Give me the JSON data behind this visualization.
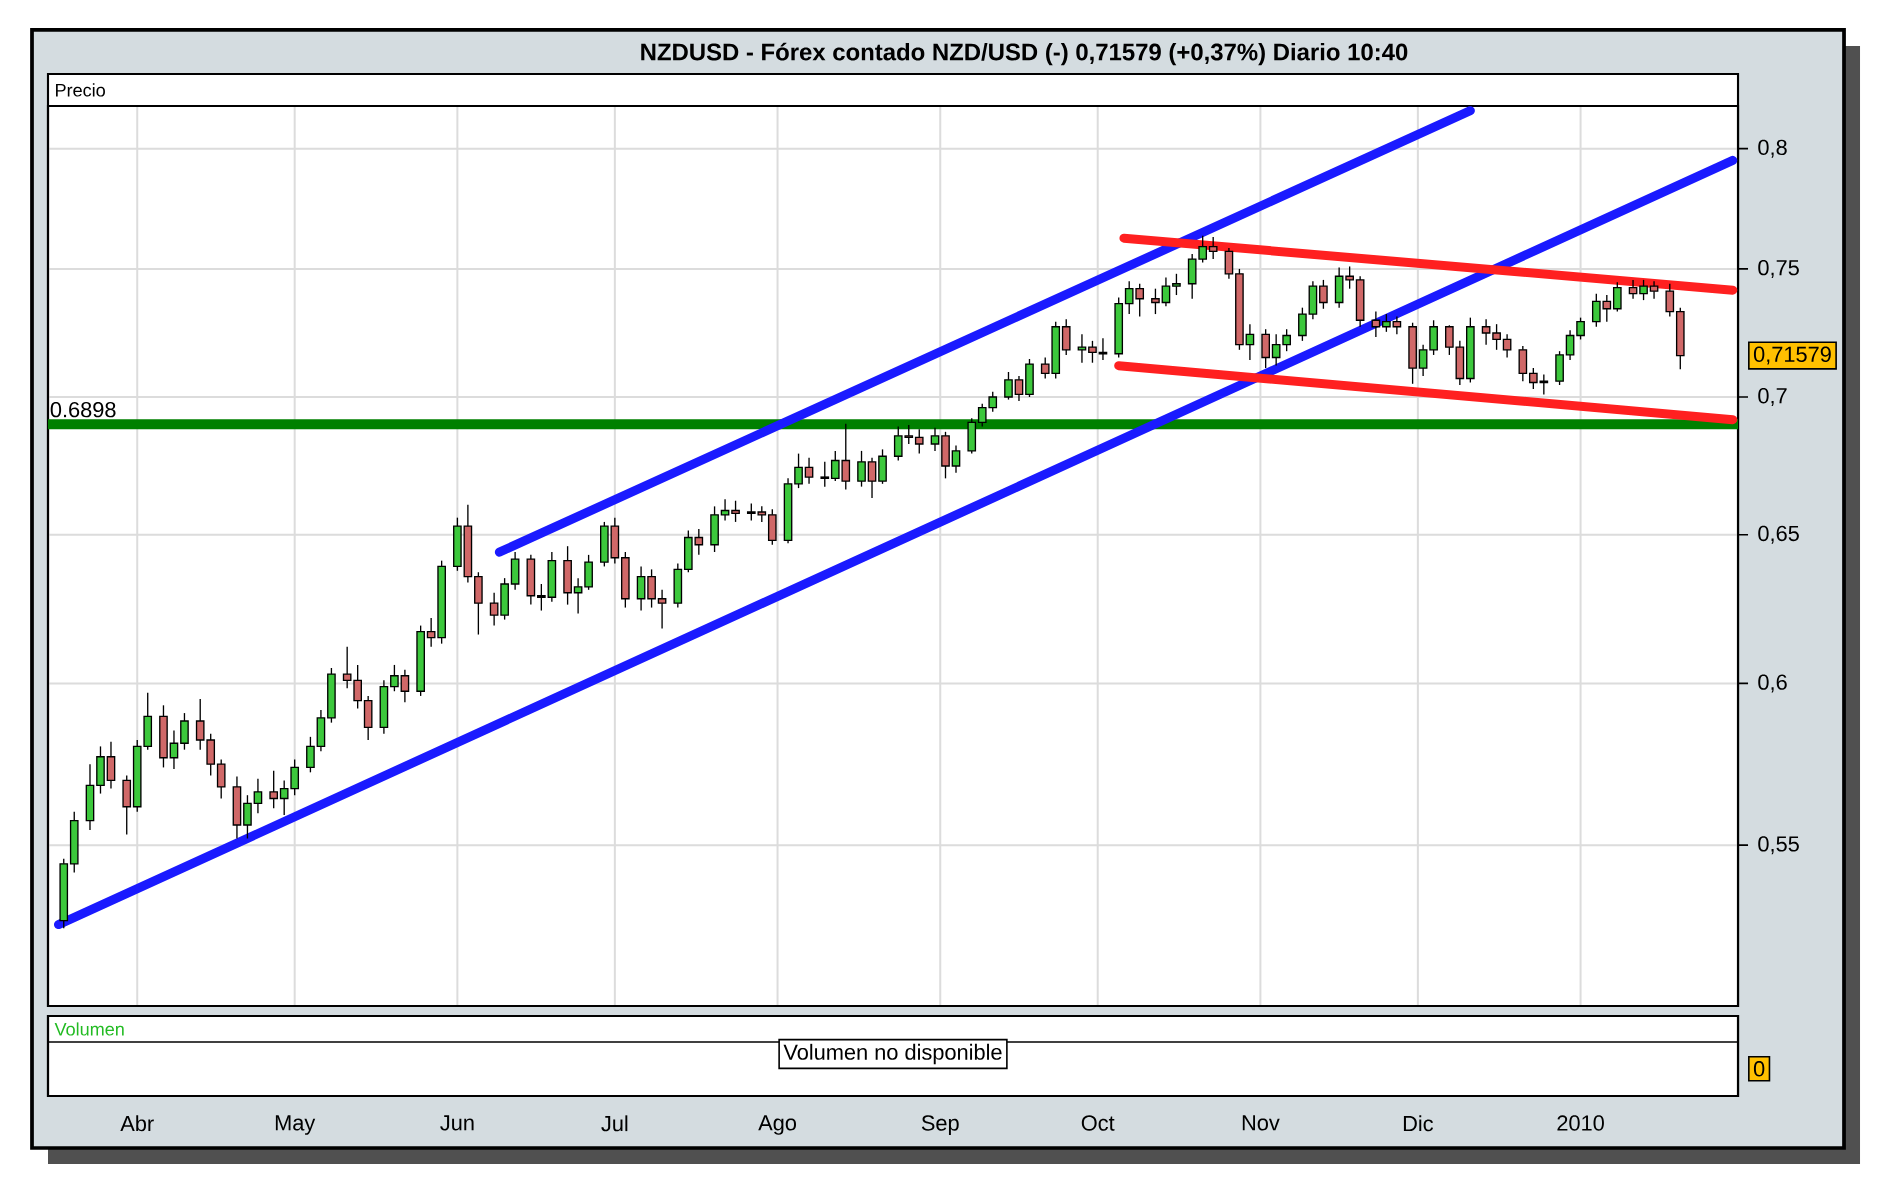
{
  "chart_data": [
    {
      "type": "candlestick",
      "title": "NZDUSD - Fórex contado NZD/USD (-) 0,71579 (+0,37%) Diario 10:40",
      "ylabel": "Precio",
      "x": [
        "2009-03-18",
        "2009-03-20",
        "2009-03-23",
        "2009-03-25",
        "2009-03-27",
        "2009-03-30",
        "2009-04-01",
        "2009-04-03",
        "2009-04-06",
        "2009-04-08",
        "2009-04-10",
        "2009-04-13",
        "2009-04-15",
        "2009-04-17",
        "2009-04-20",
        "2009-04-22",
        "2009-04-24",
        "2009-04-27",
        "2009-04-29",
        "2009-05-01",
        "2009-05-04",
        "2009-05-06",
        "2009-05-08",
        "2009-05-11",
        "2009-05-13",
        "2009-05-15",
        "2009-05-18",
        "2009-05-20",
        "2009-05-22",
        "2009-05-25",
        "2009-05-27",
        "2009-05-29",
        "2009-06-01",
        "2009-06-03",
        "2009-06-05",
        "2009-06-08",
        "2009-06-10",
        "2009-06-12",
        "2009-06-15",
        "2009-06-17",
        "2009-06-19",
        "2009-06-22",
        "2009-06-24",
        "2009-06-26",
        "2009-06-29",
        "2009-07-01",
        "2009-07-03",
        "2009-07-06",
        "2009-07-08",
        "2009-07-10",
        "2009-07-13",
        "2009-07-15",
        "2009-07-17",
        "2009-07-20",
        "2009-07-22",
        "2009-07-24",
        "2009-07-27",
        "2009-07-29",
        "2009-07-31",
        "2009-08-03",
        "2009-08-05",
        "2009-08-07",
        "2009-08-10",
        "2009-08-12",
        "2009-08-14",
        "2009-08-17",
        "2009-08-19",
        "2009-08-21",
        "2009-08-24",
        "2009-08-26",
        "2009-08-28",
        "2009-08-31",
        "2009-09-02",
        "2009-09-04",
        "2009-09-07",
        "2009-09-09",
        "2009-09-11",
        "2009-09-14",
        "2009-09-16",
        "2009-09-18",
        "2009-09-21",
        "2009-09-23",
        "2009-09-25",
        "2009-09-28",
        "2009-09-30",
        "2009-10-02",
        "2009-10-05",
        "2009-10-07",
        "2009-10-09",
        "2009-10-12",
        "2009-10-14",
        "2009-10-16",
        "2009-10-19",
        "2009-10-21",
        "2009-10-23",
        "2009-10-26",
        "2009-10-28",
        "2009-10-30",
        "2009-11-02",
        "2009-11-04",
        "2009-11-06",
        "2009-11-09",
        "2009-11-11",
        "2009-11-13",
        "2009-11-16",
        "2009-11-18",
        "2009-11-20",
        "2009-11-23",
        "2009-11-25",
        "2009-11-27",
        "2009-11-30",
        "2009-12-02",
        "2009-12-04",
        "2009-12-07",
        "2009-12-09",
        "2009-12-11",
        "2009-12-14",
        "2009-12-16",
        "2009-12-18",
        "2009-12-21",
        "2009-12-23",
        "2009-12-25",
        "2009-12-28",
        "2009-12-30",
        "2010-01-01",
        "2010-01-04",
        "2010-01-06",
        "2010-01-08",
        "2010-01-11",
        "2010-01-13",
        "2010-01-15",
        "2010-01-18",
        "2010-01-20"
      ],
      "ohlc": [
        [
          0.5281,
          0.546,
          0.526,
          0.5445
        ],
        [
          0.5445,
          0.56,
          0.542,
          0.5573
        ],
        [
          0.5573,
          0.5745,
          0.5545,
          0.568
        ],
        [
          0.568,
          0.58,
          0.5655,
          0.5768
        ],
        [
          0.5768,
          0.5815,
          0.567,
          0.5695
        ],
        [
          0.5695,
          0.571,
          0.5532,
          0.5615
        ],
        [
          0.5615,
          0.582,
          0.56,
          0.58
        ],
        [
          0.58,
          0.597,
          0.579,
          0.5895
        ],
        [
          0.5895,
          0.593,
          0.5735,
          0.5765
        ],
        [
          0.5765,
          0.585,
          0.573,
          0.581
        ],
        [
          0.581,
          0.5905,
          0.579,
          0.588
        ],
        [
          0.588,
          0.595,
          0.579,
          0.582
        ],
        [
          0.582,
          0.584,
          0.571,
          0.5745
        ],
        [
          0.5745,
          0.576,
          0.564,
          0.5675
        ],
        [
          0.5675,
          0.5707,
          0.552,
          0.556
        ],
        [
          0.556,
          0.565,
          0.552,
          0.5625
        ],
        [
          0.5625,
          0.57,
          0.5595,
          0.566
        ],
        [
          0.566,
          0.5725,
          0.561,
          0.564
        ],
        [
          0.564,
          0.5695,
          0.559,
          0.567
        ],
        [
          0.567,
          0.576,
          0.565,
          0.5735
        ],
        [
          0.5735,
          0.583,
          0.572,
          0.58
        ],
        [
          0.58,
          0.5915,
          0.5785,
          0.589
        ],
        [
          0.589,
          0.605,
          0.5875,
          0.603
        ],
        [
          0.603,
          0.612,
          0.5985,
          0.601
        ],
        [
          0.601,
          0.606,
          0.592,
          0.5945
        ],
        [
          0.5945,
          0.596,
          0.582,
          0.586
        ],
        [
          0.586,
          0.601,
          0.584,
          0.599
        ],
        [
          0.599,
          0.606,
          0.5975,
          0.6025
        ],
        [
          0.6025,
          0.6045,
          0.594,
          0.5975
        ],
        [
          0.5975,
          0.619,
          0.596,
          0.617
        ],
        [
          0.617,
          0.6215,
          0.612,
          0.615
        ],
        [
          0.615,
          0.641,
          0.613,
          0.639
        ],
        [
          0.639,
          0.656,
          0.6375,
          0.653
        ],
        [
          0.653,
          0.6605,
          0.6335,
          0.6355
        ],
        [
          0.6355,
          0.637,
          0.616,
          0.6265
        ],
        [
          0.6265,
          0.63,
          0.619,
          0.6225
        ],
        [
          0.6225,
          0.635,
          0.621,
          0.633
        ],
        [
          0.633,
          0.644,
          0.631,
          0.6415
        ],
        [
          0.6415,
          0.643,
          0.626,
          0.629
        ],
        [
          0.629,
          0.633,
          0.624,
          0.6285
        ],
        [
          0.6285,
          0.644,
          0.627,
          0.641
        ],
        [
          0.641,
          0.646,
          0.626,
          0.63
        ],
        [
          0.63,
          0.635,
          0.623,
          0.632
        ],
        [
          0.632,
          0.643,
          0.631,
          0.6405
        ],
        [
          0.6405,
          0.6545,
          0.639,
          0.653
        ],
        [
          0.653,
          0.656,
          0.64,
          0.642
        ],
        [
          0.642,
          0.644,
          0.625,
          0.628
        ],
        [
          0.628,
          0.639,
          0.624,
          0.6355
        ],
        [
          0.6355,
          0.638,
          0.625,
          0.628
        ],
        [
          0.628,
          0.631,
          0.618,
          0.6265
        ],
        [
          0.6265,
          0.64,
          0.625,
          0.638
        ],
        [
          0.638,
          0.6515,
          0.637,
          0.649
        ],
        [
          0.649,
          0.652,
          0.643,
          0.6465
        ],
        [
          0.6465,
          0.66,
          0.644,
          0.657
        ],
        [
          0.657,
          0.6625,
          0.655,
          0.6585
        ],
        [
          0.6585,
          0.662,
          0.6545,
          0.6575
        ],
        [
          0.6575,
          0.661,
          0.655,
          0.658
        ],
        [
          0.658,
          0.66,
          0.6545,
          0.657
        ],
        [
          0.657,
          0.659,
          0.6465,
          0.648
        ],
        [
          0.648,
          0.67,
          0.647,
          0.668
        ],
        [
          0.668,
          0.679,
          0.6665,
          0.674
        ],
        [
          0.674,
          0.6775,
          0.668,
          0.6705
        ],
        [
          0.6705,
          0.676,
          0.667,
          0.67
        ],
        [
          0.67,
          0.68,
          0.669,
          0.6765
        ],
        [
          0.6765,
          0.69,
          0.666,
          0.669
        ],
        [
          0.669,
          0.68,
          0.667,
          0.676
        ],
        [
          0.676,
          0.6775,
          0.663,
          0.669
        ],
        [
          0.669,
          0.6805,
          0.668,
          0.678
        ],
        [
          0.678,
          0.689,
          0.6765,
          0.6855
        ],
        [
          0.6855,
          0.6895,
          0.6825,
          0.685
        ],
        [
          0.685,
          0.688,
          0.679,
          0.6825
        ],
        [
          0.6825,
          0.6885,
          0.68,
          0.6855
        ],
        [
          0.6855,
          0.687,
          0.67,
          0.6745
        ],
        [
          0.6745,
          0.682,
          0.672,
          0.68
        ],
        [
          0.68,
          0.692,
          0.679,
          0.6905
        ],
        [
          0.6905,
          0.6975,
          0.689,
          0.696
        ],
        [
          0.696,
          0.702,
          0.6945,
          0.7
        ],
        [
          0.7,
          0.7095,
          0.699,
          0.7065
        ],
        [
          0.7065,
          0.708,
          0.6985,
          0.701
        ],
        [
          0.701,
          0.7145,
          0.7,
          0.7125
        ],
        [
          0.7125,
          0.715,
          0.707,
          0.709
        ],
        [
          0.709,
          0.729,
          0.707,
          0.727
        ],
        [
          0.727,
          0.73,
          0.716,
          0.718
        ],
        [
          0.718,
          0.724,
          0.713,
          0.719
        ],
        [
          0.719,
          0.7215,
          0.713,
          0.717
        ],
        [
          0.717,
          0.7225,
          0.714,
          0.7165
        ],
        [
          0.7165,
          0.7385,
          0.715,
          0.736
        ],
        [
          0.736,
          0.745,
          0.732,
          0.742
        ],
        [
          0.742,
          0.744,
          0.731,
          0.738
        ],
        [
          0.738,
          0.742,
          0.732,
          0.7365
        ],
        [
          0.7365,
          0.7465,
          0.735,
          0.743
        ],
        [
          0.743,
          0.748,
          0.7395,
          0.744
        ],
        [
          0.744,
          0.756,
          0.738,
          0.754
        ],
        [
          0.754,
          0.7635,
          0.7525,
          0.759
        ],
        [
          0.759,
          0.763,
          0.754,
          0.757
        ],
        [
          0.757,
          0.7585,
          0.746,
          0.748
        ],
        [
          0.748,
          0.75,
          0.718,
          0.72
        ],
        [
          0.72,
          0.728,
          0.714,
          0.724
        ],
        [
          0.724,
          0.726,
          0.711,
          0.715
        ],
        [
          0.715,
          0.724,
          0.712,
          0.72
        ],
        [
          0.72,
          0.726,
          0.7175,
          0.7235
        ],
        [
          0.7235,
          0.7345,
          0.7215,
          0.732
        ],
        [
          0.732,
          0.745,
          0.73,
          0.743
        ],
        [
          0.743,
          0.7455,
          0.734,
          0.7365
        ],
        [
          0.7365,
          0.7505,
          0.7345,
          0.747
        ],
        [
          0.747,
          0.751,
          0.742,
          0.7455
        ],
        [
          0.7455,
          0.747,
          0.727,
          0.7295
        ],
        [
          0.7295,
          0.733,
          0.723,
          0.727
        ],
        [
          0.727,
          0.732,
          0.725,
          0.729
        ],
        [
          0.729,
          0.731,
          0.724,
          0.727
        ],
        [
          0.727,
          0.7285,
          0.705,
          0.711
        ],
        [
          0.711,
          0.72,
          0.708,
          0.718
        ],
        [
          0.718,
          0.7295,
          0.716,
          0.727
        ],
        [
          0.727,
          0.7275,
          0.716,
          0.719
        ],
        [
          0.719,
          0.7215,
          0.7045,
          0.707
        ],
        [
          0.707,
          0.7305,
          0.7055,
          0.727
        ],
        [
          0.727,
          0.73,
          0.72,
          0.7245
        ],
        [
          0.7245,
          0.728,
          0.718,
          0.722
        ],
        [
          0.722,
          0.724,
          0.715,
          0.718
        ],
        [
          0.718,
          0.7195,
          0.706,
          0.709
        ],
        [
          0.709,
          0.711,
          0.703,
          0.7055
        ],
        [
          0.7055,
          0.7085,
          0.701,
          0.706
        ],
        [
          0.706,
          0.7175,
          0.7045,
          0.716
        ],
        [
          0.716,
          0.7255,
          0.714,
          0.7235
        ],
        [
          0.7235,
          0.7305,
          0.722,
          0.729
        ],
        [
          0.729,
          0.74,
          0.727,
          0.737
        ],
        [
          0.737,
          0.7395,
          0.729,
          0.734
        ],
        [
          0.734,
          0.7445,
          0.733,
          0.7425
        ],
        [
          0.7425,
          0.7455,
          0.738,
          0.74
        ],
        [
          0.74,
          0.7455,
          0.7375,
          0.743
        ],
        [
          0.743,
          0.745,
          0.738,
          0.741
        ],
        [
          0.741,
          0.744,
          0.731,
          0.733
        ],
        [
          0.733,
          0.7345,
          0.7105,
          0.7158
        ]
      ],
      "series": [
        {
          "type": "line",
          "color": "#1a1aff",
          "x": [
            "2009-03-17",
            "2010-01-30"
          ],
          "values": [
            0.527,
            0.7951
          ]
        },
        {
          "type": "line",
          "color": "#1a1aff",
          "x": [
            "2009-06-09",
            "2009-12-11"
          ],
          "values": [
            0.6439,
            0.8165
          ]
        },
        {
          "type": "line",
          "color": "#ff2020",
          "x": [
            "2009-10-06",
            "2010-01-30"
          ],
          "values": [
            0.7625,
            0.7414
          ]
        },
        {
          "type": "line",
          "color": "#ff2020",
          "x": [
            "2009-10-05",
            "2010-01-30"
          ],
          "values": [
            0.7119,
            0.6915
          ]
        }
      ],
      "xlim": [
        "2009-03-15",
        "2010-01-31"
      ],
      "xticks": [
        {
          "value": "2009-04-01",
          "label": "Abr"
        },
        {
          "value": "2009-05-01",
          "label": "May"
        },
        {
          "value": "2009-06-01",
          "label": "Jun"
        },
        {
          "value": "2009-07-01",
          "label": "Jul"
        },
        {
          "value": "2009-08-01",
          "label": "Ago"
        },
        {
          "value": "2009-09-01",
          "label": "Sep"
        },
        {
          "value": "2009-10-01",
          "label": "Oct"
        },
        {
          "value": "2009-11-01",
          "label": "Nov"
        },
        {
          "value": "2009-12-01",
          "label": "Dic"
        },
        {
          "value": "2010-01-01",
          "label": "2010"
        }
      ],
      "ylim": [
        0.5044,
        0.8186
      ],
      "yticks": [
        {
          "value": 0.55,
          "label": "0,55"
        },
        {
          "value": 0.6,
          "label": "0,6"
        },
        {
          "value": 0.65,
          "label": "0,65"
        },
        {
          "value": 0.7,
          "label": "0,7"
        },
        {
          "value": 0.75,
          "label": "0,75"
        },
        {
          "value": 0.8,
          "label": "0,8"
        }
      ],
      "log": "y",
      "grid": true,
      "ref_lines": [
        {
          "axis": "y",
          "value": 0.6898,
          "label": "0.6898",
          "color": "#008000"
        }
      ],
      "annotations": [
        "0,71579"
      ]
    },
    {
      "type": "other",
      "ylabel": "Volumen",
      "annotations": [
        "Volumen no disponible",
        "0"
      ]
    }
  ]
}
